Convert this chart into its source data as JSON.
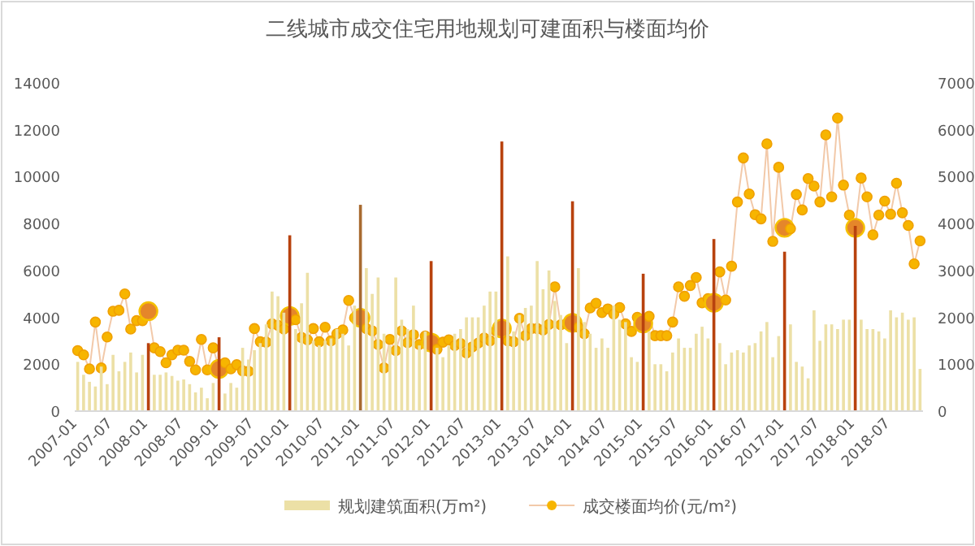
{
  "chart_data": {
    "type": "bar",
    "title": "二线城市成交住宅用地规划可建面积与楼面均价",
    "categories": [
      "2007-01",
      null,
      null,
      null,
      null,
      null,
      "2007-07",
      null,
      null,
      null,
      null,
      null,
      "2008-01",
      null,
      null,
      null,
      null,
      null,
      "2008-07",
      null,
      null,
      null,
      null,
      null,
      "2009-01",
      null,
      null,
      null,
      null,
      null,
      "2009-07",
      null,
      null,
      null,
      null,
      null,
      "2010-01",
      null,
      null,
      null,
      null,
      null,
      "2010-07",
      null,
      null,
      null,
      null,
      null,
      "2011-01",
      null,
      null,
      null,
      null,
      null,
      "2011-07",
      null,
      null,
      null,
      null,
      null,
      "2012-01",
      null,
      null,
      null,
      null,
      null,
      "2012-07",
      null,
      null,
      null,
      null,
      null,
      "2013-01",
      null,
      null,
      null,
      null,
      null,
      "2013-07",
      null,
      null,
      null,
      null,
      null,
      "2014-01",
      null,
      null,
      null,
      null,
      null,
      "2014-07",
      null,
      null,
      null,
      null,
      null,
      "2015-01",
      null,
      null,
      null,
      null,
      null,
      "2015-07",
      null,
      null,
      null,
      null,
      null,
      "2016-01",
      null,
      null,
      null,
      null,
      null,
      "2016-07",
      null,
      null,
      null,
      null,
      null,
      "2017-01",
      null,
      null,
      null,
      null,
      null,
      "2017-07",
      null,
      null,
      null,
      null,
      null,
      "2018-01",
      null,
      null,
      null,
      null,
      null,
      "2018-07",
      null,
      null,
      null,
      null,
      null
    ],
    "series": [
      {
        "name": "规划建筑面积(万m²)",
        "colors": [
          "#ece0a6",
          "#ece0a6",
          "#ece0a6",
          "#ece0a6",
          "#ece0a6",
          "#ece0a6",
          "#ece0a6",
          "#ece0a6",
          "#ece0a6",
          "#ece0a6",
          "#ece0a6",
          "#ece0a6",
          "#b8420e",
          "#ece0a6",
          "#ece0a6",
          "#ece0a6",
          "#ece0a6",
          "#ece0a6",
          "#ece0a6",
          "#ece0a6",
          "#ece0a6",
          "#ece0a6",
          "#ece0a6",
          "#ece0a6",
          "#b8420e",
          "#ece0a6",
          "#ece0a6",
          "#ece0a6",
          "#ece0a6",
          "#ece0a6",
          "#ece0a6",
          "#ece0a6",
          "#ece0a6",
          "#ece0a6",
          "#ece0a6",
          "#ece0a6",
          "#b8420e",
          "#ece0a6",
          "#ece0a6",
          "#ece0a6",
          "#ece0a6",
          "#ece0a6",
          "#ece0a6",
          "#ece0a6",
          "#ece0a6",
          "#ece0a6",
          "#ece0a6",
          "#ece0a6",
          "#a86a30",
          "#ece0a6",
          "#ece0a6",
          "#ece0a6",
          "#ece0a6",
          "#ece0a6",
          "#ece0a6",
          "#ece0a6",
          "#ece0a6",
          "#ece0a6",
          "#ece0a6",
          "#ece0a6",
          "#b8420e",
          "#ece0a6",
          "#ece0a6",
          "#ece0a6",
          "#ece0a6",
          "#ece0a6",
          "#ece0a6",
          "#ece0a6",
          "#ece0a6",
          "#ece0a6",
          "#ece0a6",
          "#ece0a6",
          "#b8420e",
          "#ece0a6",
          "#ece0a6",
          "#ece0a6",
          "#ece0a6",
          "#ece0a6",
          "#ece0a6",
          "#ece0a6",
          "#ece0a6",
          "#ece0a6",
          "#ece0a6",
          "#ece0a6",
          "#b8420e",
          "#ece0a6",
          "#ece0a6",
          "#ece0a6",
          "#ece0a6",
          "#ece0a6",
          "#ece0a6",
          "#ece0a6",
          "#ece0a6",
          "#ece0a6",
          "#ece0a6",
          "#ece0a6",
          "#b8420e",
          "#ece0a6",
          "#ece0a6",
          "#ece0a6",
          "#ece0a6",
          "#ece0a6",
          "#ece0a6",
          "#ece0a6",
          "#ece0a6",
          "#ece0a6",
          "#ece0a6",
          "#ece0a6",
          "#b8420e",
          "#ece0a6",
          "#ece0a6",
          "#ece0a6",
          "#ece0a6",
          "#ece0a6",
          "#ece0a6",
          "#ece0a6",
          "#ece0a6",
          "#ece0a6",
          "#ece0a6",
          "#ece0a6",
          "#b8420e",
          "#ece0a6",
          "#ece0a6",
          "#ece0a6",
          "#ece0a6",
          "#ece0a6",
          "#ece0a6",
          "#ece0a6",
          "#ece0a6",
          "#ece0a6",
          "#ece0a6",
          "#ece0a6",
          "#b8420e",
          "#ece0a6",
          "#ece0a6",
          "#ece0a6",
          "#ece0a6",
          "#ece0a6",
          "#ece0a6",
          "#ece0a6",
          "#ece0a6",
          "#ece0a6",
          "#ece0a6",
          "#ece0a6"
        ],
        "values": [
          2100,
          1550,
          1250,
          1050,
          1900,
          1150,
          2400,
          1700,
          2100,
          2500,
          1650,
          2400,
          2900,
          1550,
          1550,
          1650,
          1500,
          1300,
          1350,
          1150,
          800,
          1000,
          550,
          1200,
          3150,
          750,
          1200,
          1000,
          2700,
          2200,
          2600,
          2900,
          3700,
          5100,
          4900,
          4200,
          7500,
          3500,
          4600,
          5900,
          3000,
          2800,
          3000,
          3100,
          3500,
          3300,
          2800,
          4500,
          8800,
          6100,
          5000,
          5700,
          3300,
          2800,
          5700,
          3900,
          3500,
          4500,
          2800,
          3400,
          6400,
          2700,
          2300,
          2800,
          3300,
          3500,
          4000,
          4000,
          4000,
          4500,
          5100,
          5100,
          11500,
          6600,
          3400,
          4100,
          4400,
          4500,
          6400,
          5200,
          6000,
          4700,
          4100,
          2900,
          8950,
          6100,
          3800,
          3300,
          2700,
          3100,
          2700,
          4500,
          3900,
          3800,
          2300,
          2100,
          5860,
          3400,
          2000,
          2000,
          1700,
          2500,
          3100,
          2700,
          2700,
          3300,
          3600,
          3100,
          7340,
          2900,
          2000,
          2500,
          2600,
          2500,
          2800,
          2900,
          3400,
          3800,
          2300,
          3200,
          6800,
          3700,
          2100,
          1900,
          1400,
          4300,
          3000,
          3700,
          3700,
          3500,
          3900,
          3900,
          7900,
          3900,
          3500,
          3500,
          3400,
          3100,
          4300,
          4000,
          4200,
          3900,
          4000,
          1800
        ]
      },
      {
        "name": "成交楼面均价(元/m²)",
        "type": "line",
        "axis": "y2",
        "marker": "circle",
        "color": "#f2c9a9",
        "colors": [
          "#f7b500",
          "#f7b500",
          "#f7b500",
          "#f7b500",
          "#f7b500",
          "#f7b500",
          "#f7b500",
          "#f7b500",
          "#f7b500",
          "#f7b500",
          "#f7b500",
          "#f7b500",
          "#e5862a",
          "#f7b500",
          "#f7b500",
          "#f7b500",
          "#f7b500",
          "#f7b500",
          "#f7b500",
          "#f7b500",
          "#f7b500",
          "#f7b500",
          "#f7b500",
          "#f7b500",
          "#e5862a",
          "#f7b500",
          "#f7b500",
          "#f7b500",
          "#f7b500",
          "#f7b500",
          "#f7b500",
          "#f7b500",
          "#f7b500",
          "#f7b500",
          "#f7b500",
          "#f7b500",
          "#e5862a",
          "#f7b500",
          "#f7b500",
          "#f7b500",
          "#f7b500",
          "#f7b500",
          "#f7b500",
          "#f7b500",
          "#f7b500",
          "#f7b500",
          "#f7b500",
          "#f7b500",
          "#e5862a",
          "#f7b500",
          "#f7b500",
          "#f7b500",
          "#f7b500",
          "#f7b500",
          "#f7b500",
          "#f7b500",
          "#f7b500",
          "#f7b500",
          "#f7b500",
          "#f7b500",
          "#e5862a",
          "#f7b500",
          "#f7b500",
          "#f7b500",
          "#f7b500",
          "#f7b500",
          "#f7b500",
          "#f7b500",
          "#f7b500",
          "#f7b500",
          "#f7b500",
          "#f7b500",
          "#e5862a",
          "#f7b500",
          "#f7b500",
          "#f7b500",
          "#f7b500",
          "#f7b500",
          "#f7b500",
          "#f7b500",
          "#f7b500",
          "#f7b500",
          "#f7b500",
          "#f7b500",
          "#e5862a",
          "#f7b500",
          "#f7b500",
          "#f7b500",
          "#f7b500",
          "#f7b500",
          "#f7b500",
          "#f7b500",
          "#f7b500",
          "#f7b500",
          "#f7b500",
          "#f7b500",
          "#e5862a",
          "#f7b500",
          "#f7b500",
          "#f7b500",
          "#f7b500",
          "#f7b500",
          "#f7b500",
          "#f7b500",
          "#f7b500",
          "#f7b500",
          "#f7b500",
          "#f7b500",
          "#e5862a",
          "#f7b500",
          "#f7b500",
          "#f7b500",
          "#f7b500",
          "#f7b500",
          "#f7b500",
          "#f7b500",
          "#f7b500",
          "#f7b500",
          "#f7b500",
          "#f7b500",
          "#e5862a",
          "#f7b500",
          "#f7b500",
          "#f7b500",
          "#f7b500",
          "#f7b500",
          "#f7b500",
          "#f7b500",
          "#f7b500",
          "#f7b500",
          "#f7b500",
          "#f7b500",
          "#e5862a",
          "#f7b500",
          "#f7b500",
          "#f7b500",
          "#f7b500",
          "#f7b500",
          "#f7b500",
          "#f7b500",
          "#f7b500",
          "#f7b500",
          "#f7b500",
          "#f7b500"
        ],
        "values": [
          1290,
          1200,
          900,
          1900,
          920,
          1580,
          2130,
          2150,
          2500,
          1750,
          1930,
          1930,
          2130,
          1350,
          1270,
          1030,
          1200,
          1300,
          1300,
          1060,
          880,
          1530,
          880,
          1350,
          900,
          1030,
          900,
          990,
          860,
          850,
          1760,
          1480,
          1470,
          1860,
          1830,
          1750,
          2030,
          1950,
          1570,
          1520,
          1760,
          1480,
          1790,
          1500,
          1650,
          1730,
          2360,
          1990,
          1990,
          1760,
          1710,
          1420,
          920,
          1530,
          1290,
          1710,
          1460,
          1630,
          1420,
          1600,
          1460,
          1320,
          1470,
          1520,
          1400,
          1440,
          1240,
          1370,
          1450,
          1560,
          1500,
          1710,
          1760,
          1500,
          1480,
          1980,
          1610,
          1760,
          1760,
          1730,
          1850,
          2650,
          1840,
          1860,
          1880,
          1790,
          1650,
          2200,
          2300,
          2100,
          2180,
          2070,
          2210,
          1860,
          1700,
          2000,
          1870,
          2020,
          1610,
          1610,
          1610,
          1900,
          2650,
          2450,
          2680,
          2850,
          2310,
          2400,
          2310,
          2970,
          2370,
          3090,
          4460,
          5400,
          4630,
          4190,
          4100,
          5700,
          3620,
          5200,
          3910,
          3890,
          4620,
          4290,
          4960,
          4800,
          4460,
          5890,
          4570,
          6250,
          4820,
          4180,
          3910,
          4970,
          4570,
          3760,
          4180,
          4480,
          4200,
          4860,
          4230,
          3960,
          3140,
          3630
        ]
      }
    ],
    "ylim": [
      0,
      14000
    ],
    "yticks": [
      0,
      2000,
      4000,
      6000,
      8000,
      10000,
      12000,
      14000
    ],
    "y2lim": [
      0,
      7000
    ],
    "y2ticks": [
      0,
      1000,
      2000,
      3000,
      4000,
      5000,
      6000,
      7000
    ],
    "legend": "bottom"
  }
}
